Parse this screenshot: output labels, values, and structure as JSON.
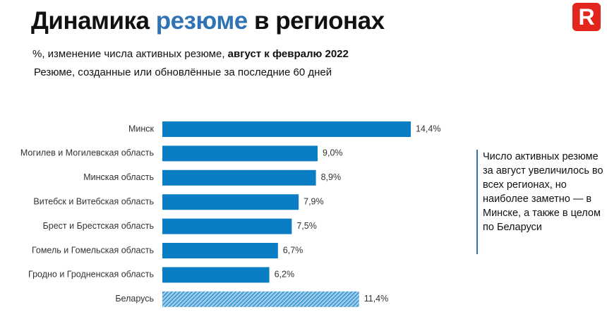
{
  "chart_data": {
    "type": "bar",
    "orientation": "horizontal",
    "title": [
      "Динамика",
      "резюме",
      "в регионах"
    ],
    "subtitle": [
      "%, изменение числа активных резюме,",
      "август к февралю 2022"
    ],
    "subtitle2": "Резюме, созданные или обновлённые за последние 60 дней",
    "logo": "R",
    "annotation": "Число активных резюме за август увеличилось во всех регионах, но наиболее заметно — в Минске, а также в целом по Беларуси",
    "categories": [
      "Минск",
      "Могилев и Могилевская область",
      "Минская область",
      "Витебск и Витебская область",
      "Брест и Брестская область",
      "Гомель и Гомельская область",
      "Гродно и Гродненская область",
      "Беларусь"
    ],
    "values": [
      14.4,
      9.0,
      8.9,
      7.9,
      7.5,
      6.7,
      6.2,
      11.4
    ],
    "value_labels": [
      "14,4%",
      "9,0%",
      "8,9%",
      "7,9%",
      "7,5%",
      "6,7%",
      "6,2%",
      "11,4%"
    ],
    "bar_styles": [
      "solid",
      "solid",
      "solid",
      "solid",
      "solid",
      "solid",
      "solid",
      "hatched"
    ],
    "color": "#0b7dc4",
    "xlim": [
      0,
      15
    ]
  }
}
